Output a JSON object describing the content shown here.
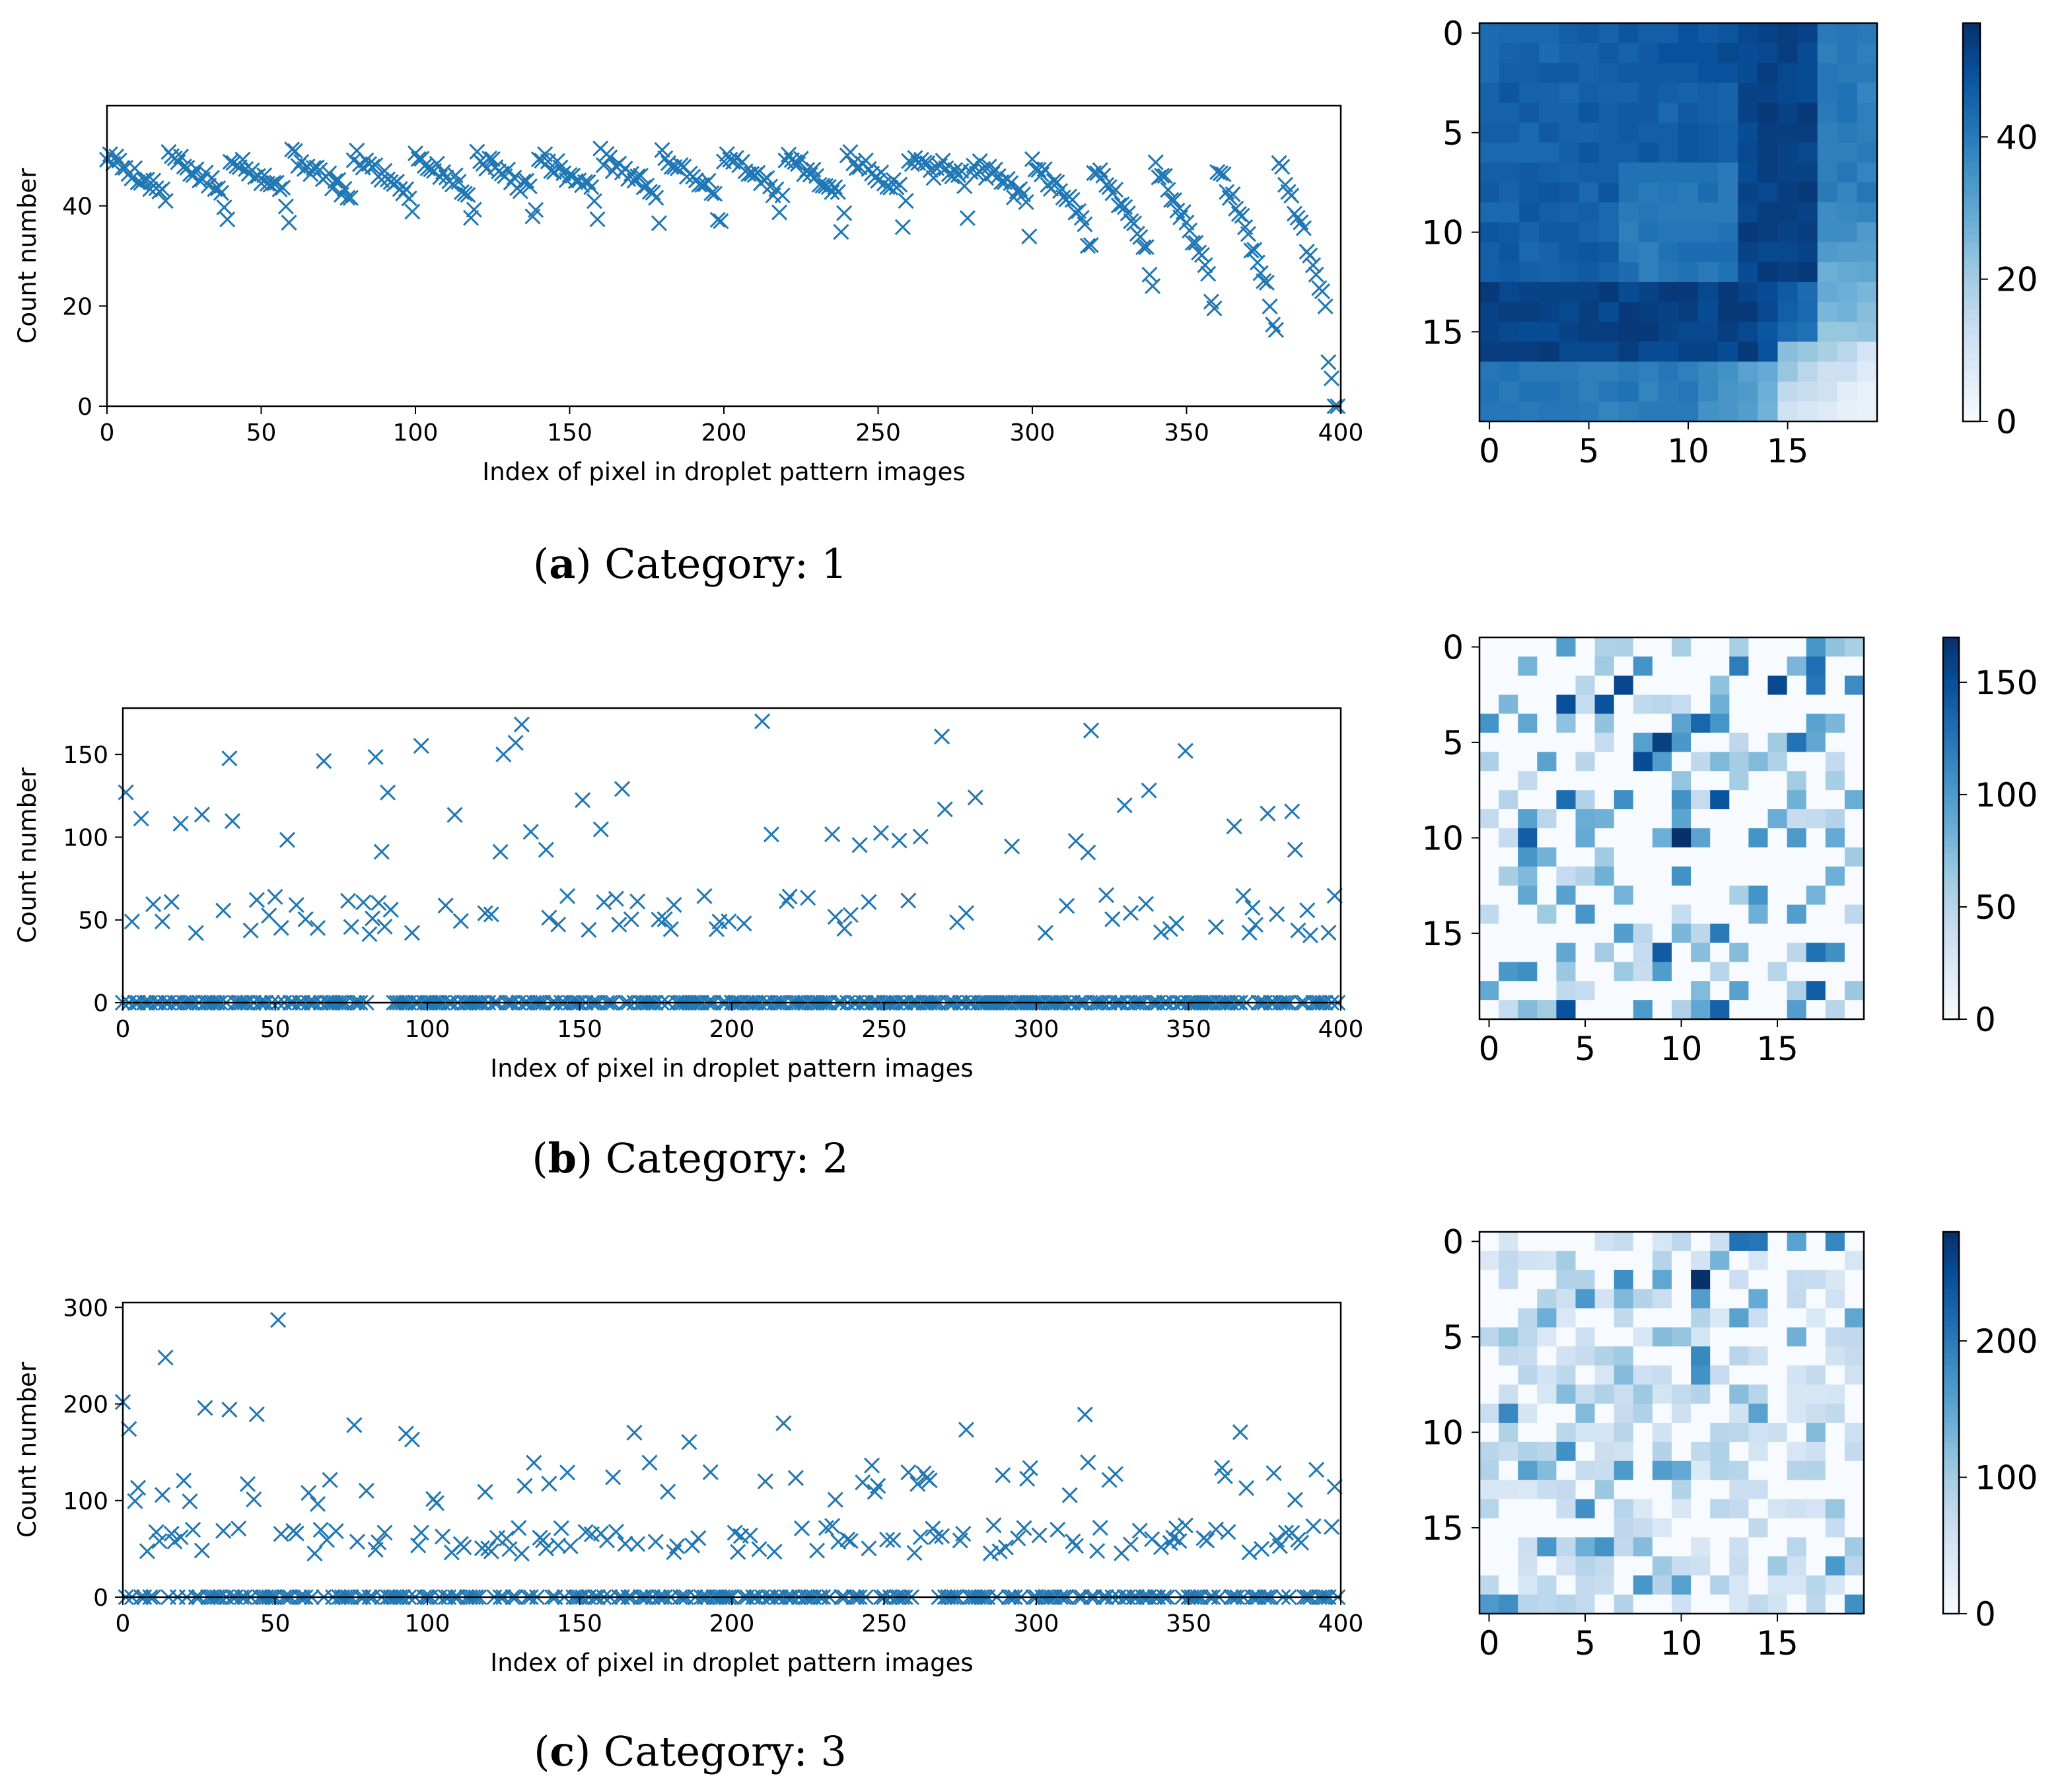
{
  "captions": [
    {
      "letter": "a",
      "text": ") Category: 1",
      "open": "("
    },
    {
      "letter": "b",
      "text": ") Category: 2",
      "open": "("
    },
    {
      "letter": "c",
      "text": ") Category: 3",
      "open": "("
    }
  ],
  "colors": {
    "marker": "#1f77b4"
  },
  "chart_data": [
    {
      "type": "scatter",
      "panel": "a",
      "xlabel": "Index of pixel in droplet pattern images",
      "ylabel": "Count number",
      "xlim": [
        0,
        400
      ],
      "ylim": [
        0,
        60
      ],
      "xticks": [
        0,
        50,
        100,
        150,
        200,
        250,
        300,
        350,
        400
      ],
      "yticks": [
        0,
        20,
        40
      ],
      "marker": "x",
      "profile": "cat1",
      "series_points_count": 400
    },
    {
      "type": "heatmap",
      "panel": "a",
      "rows": 20,
      "cols": 20,
      "colormap": "Blues",
      "vmin": 0,
      "vmax": 56,
      "ticks": [
        0,
        5,
        10,
        15
      ],
      "colorbar_ticks": [
        0,
        20,
        40
      ],
      "profile": "cat1"
    },
    {
      "type": "scatter",
      "panel": "b",
      "xlabel": "Index of pixel in droplet pattern images",
      "ylabel": "Count number",
      "xlim": [
        0,
        400
      ],
      "ylim": [
        0,
        178
      ],
      "xticks": [
        0,
        50,
        100,
        150,
        200,
        250,
        300,
        350,
        400
      ],
      "yticks": [
        0,
        50,
        100,
        150
      ],
      "marker": "x",
      "profile": "cat2",
      "series_points_count": 400
    },
    {
      "type": "heatmap",
      "panel": "b",
      "rows": 20,
      "cols": 20,
      "colormap": "Blues",
      "vmin": 0,
      "vmax": 170,
      "ticks": [
        0,
        5,
        10,
        15
      ],
      "colorbar_ticks": [
        0,
        50,
        100,
        150
      ],
      "profile": "cat2"
    },
    {
      "type": "scatter",
      "panel": "c",
      "xlabel": "Index of pixel in droplet pattern images",
      "ylabel": "Count number",
      "xlim": [
        0,
        400
      ],
      "ylim": [
        0,
        305
      ],
      "xticks": [
        0,
        50,
        100,
        150,
        200,
        250,
        300,
        350,
        400
      ],
      "yticks": [
        0,
        100,
        200,
        300
      ],
      "marker": "x",
      "profile": "cat3",
      "series_points_count": 400
    },
    {
      "type": "heatmap",
      "panel": "c",
      "rows": 20,
      "cols": 20,
      "colormap": "Blues",
      "vmin": 0,
      "vmax": 280,
      "ticks": [
        0,
        5,
        10,
        15
      ],
      "colorbar_ticks": [
        0,
        100,
        200
      ],
      "profile": "cat3"
    }
  ]
}
